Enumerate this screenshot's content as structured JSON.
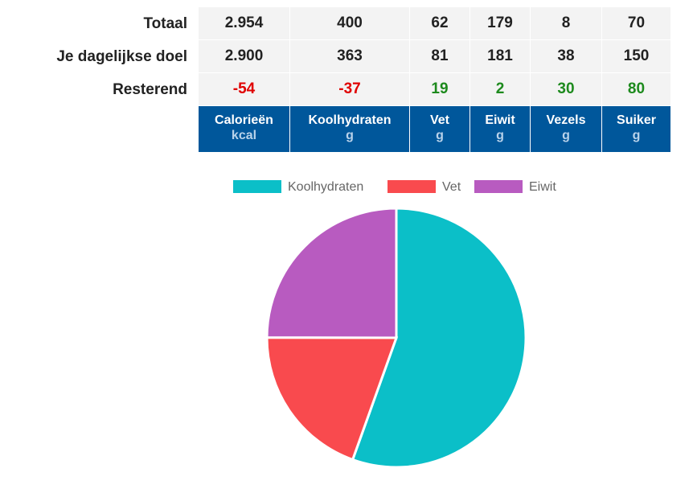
{
  "table": {
    "rows": [
      {
        "label": "Totaal",
        "values": [
          "2.954",
          "400",
          "62",
          "179",
          "8",
          "70"
        ],
        "status": [
          "",
          "",
          "",
          "",
          "",
          ""
        ]
      },
      {
        "label": "Je dagelijkse doel",
        "values": [
          "2.900",
          "363",
          "81",
          "181",
          "38",
          "150"
        ],
        "status": [
          "",
          "",
          "",
          "",
          "",
          ""
        ]
      },
      {
        "label": "Resterend",
        "values": [
          "-54",
          "-37",
          "19",
          "2",
          "30",
          "80"
        ],
        "status": [
          "neg",
          "neg",
          "pos",
          "pos",
          "pos",
          "pos"
        ]
      }
    ],
    "columns": [
      {
        "name": "Calorieën",
        "unit": "kcal"
      },
      {
        "name": "Koolhydraten",
        "unit": "g"
      },
      {
        "name": "Vet",
        "unit": "g"
      },
      {
        "name": "Eiwit",
        "unit": "g"
      },
      {
        "name": "Vezels",
        "unit": "g"
      },
      {
        "name": "Suiker",
        "unit": "g"
      }
    ]
  },
  "chart_data": {
    "type": "pie",
    "categories": [
      "Koolhydraten",
      "Vet",
      "Eiwit"
    ],
    "values": [
      400,
      141,
      180
    ],
    "colors": [
      "#0bbfc8",
      "#f94a4e",
      "#b85bc0"
    ],
    "legend": "top"
  }
}
